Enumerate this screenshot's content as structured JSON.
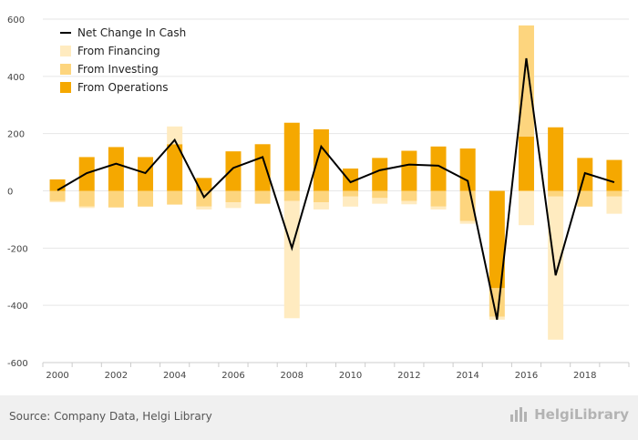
{
  "chart_data": {
    "type": "bar",
    "stacked": true,
    "categories": [
      "2000",
      "2001",
      "2002",
      "2003",
      "2004",
      "2005",
      "2006",
      "2007",
      "2008",
      "2009",
      "2010",
      "2011",
      "2012",
      "2013",
      "2014",
      "2015",
      "2016",
      "2017",
      "2018",
      "2019"
    ],
    "x_tick_labels": [
      "2000",
      "2002",
      "2004",
      "2006",
      "2008",
      "2010",
      "2012",
      "2014",
      "2016",
      "2018"
    ],
    "series": [
      {
        "name": "From Operations",
        "kind": "bar",
        "color": "#f5a800",
        "values": [
          40,
          118,
          153,
          118,
          163,
          45,
          138,
          163,
          238,
          215,
          78,
          115,
          140,
          155,
          148,
          -340,
          190,
          222,
          115,
          108
        ]
      },
      {
        "name": "From Investing",
        "kind": "bar",
        "color": "#fdd57e",
        "values": [
          -35,
          -55,
          -58,
          -55,
          -48,
          -55,
          -40,
          -45,
          -35,
          -40,
          -20,
          -25,
          -35,
          -55,
          -105,
          -100,
          388,
          -20,
          -55,
          -20
        ]
      },
      {
        "name": "From Financing",
        "kind": "bar",
        "color": "#ffebc0",
        "values": [
          -5,
          -5,
          0,
          0,
          62,
          -10,
          -20,
          0,
          -410,
          -25,
          -35,
          -20,
          -12,
          -10,
          -10,
          -10,
          -120,
          -500,
          0,
          -60
        ]
      },
      {
        "name": "Net Change In Cash",
        "kind": "line",
        "color": "#000000",
        "values": [
          2,
          62,
          95,
          62,
          178,
          -22,
          80,
          118,
          -200,
          155,
          30,
          72,
          92,
          88,
          35,
          -450,
          463,
          -295,
          62,
          30
        ]
      }
    ],
    "legend": [
      "Net Change In Cash",
      "From Financing",
      "From Investing",
      "From Operations"
    ],
    "legend_position": "top-left",
    "ylim": [
      -600,
      600
    ],
    "yticks": [
      600,
      400,
      200,
      0,
      -200,
      -400,
      -600
    ],
    "grid": true
  },
  "footer": {
    "source": "Source: Company Data, Helgi Library",
    "logo_text": "HelgiLibrary"
  },
  "colors": {
    "operations": "#f5a800",
    "investing": "#fdd57e",
    "financing": "#ffebc0",
    "line": "#000000"
  }
}
